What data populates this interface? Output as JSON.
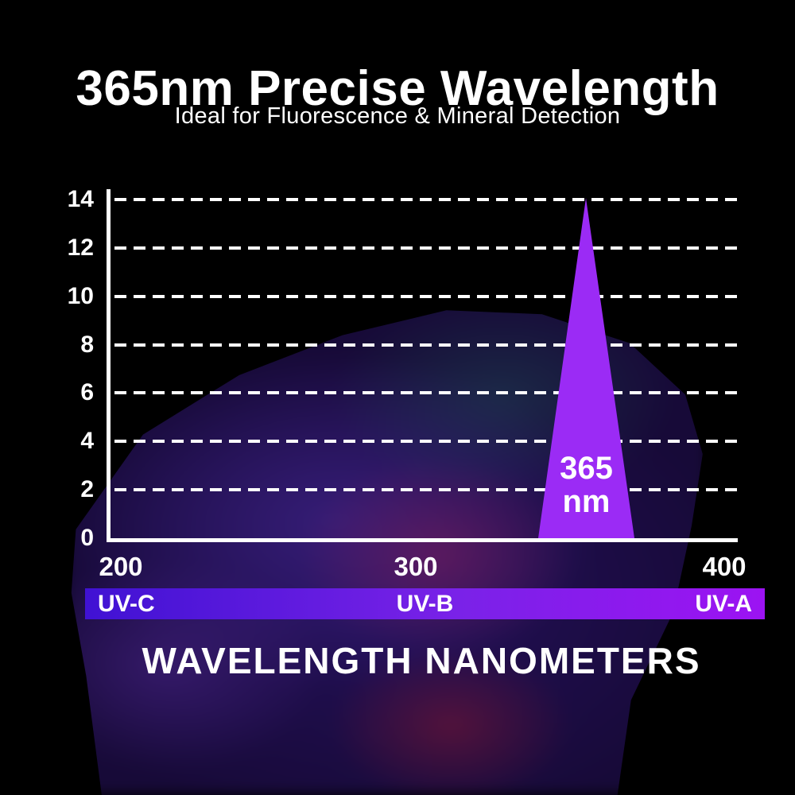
{
  "header": {
    "title": "365nm Precise Wavelength",
    "subtitle": "Ideal for Fluorescence & Mineral Detection"
  },
  "chart_data": {
    "type": "area",
    "title": "365nm Precise Wavelength",
    "subtitle": "Ideal for Fluorescence & Mineral Detection",
    "description": "UV LED emission spectrum: single narrow triangular peak centered at 365 nm rising to 14 (relative intensity), zero elsewhere",
    "xlabel": "WAVELENGTH NANOMETERS",
    "ylabel": "",
    "x_ticks": [
      "200",
      "300",
      "400"
    ],
    "y_ticks": [
      0,
      2,
      4,
      6,
      8,
      10,
      12,
      14
    ],
    "ylim": [
      0,
      14
    ],
    "xlim": [
      200,
      400
    ],
    "grid": "dashed horizontal white lines, legend none",
    "series": [
      {
        "name": "365 nm emission peak",
        "shape": "triangle",
        "peak_wavelength_nm": 365,
        "peak_value": 14,
        "base_value": 0
      }
    ],
    "peak_label": {
      "line1": "365",
      "line2": "nm"
    },
    "colors": {
      "peak_fill": "#9b2bf5",
      "axis": "#ffffff",
      "grid": "#ffffff",
      "text": "#ffffff",
      "background": "#000000"
    }
  },
  "uv_bands": {
    "labels": [
      "UV-C",
      "UV-B",
      "UV-A"
    ],
    "gradient": [
      "#4012d3",
      "#7a22e8",
      "#9c13f2"
    ]
  }
}
